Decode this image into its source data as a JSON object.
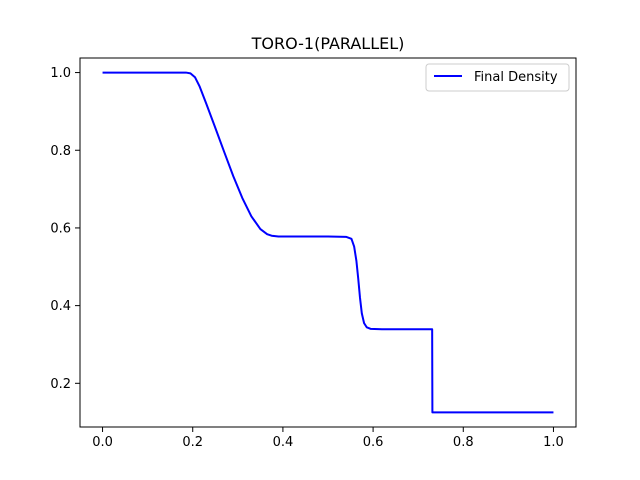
{
  "chart_data": {
    "type": "line",
    "title": "TORO-1(PARALLEL)",
    "xlabel": "",
    "ylabel": "",
    "xlim": [
      -0.05,
      1.05
    ],
    "ylim": [
      0.0875,
      1.0375
    ],
    "x_ticks": [
      0.0,
      0.2,
      0.4,
      0.6,
      0.8,
      1.0
    ],
    "x_tick_labels": [
      "0.0",
      "0.2",
      "0.4",
      "0.6",
      "0.8",
      "1.0"
    ],
    "y_ticks": [
      0.2,
      0.4,
      0.6,
      0.8,
      1.0
    ],
    "y_tick_labels": [
      "0.2",
      "0.4",
      "0.6",
      "0.8",
      "1.0"
    ],
    "grid": false,
    "legend_position": "top-right",
    "series": [
      {
        "name": "Final Density",
        "color": "#0000ff",
        "x": [
          0.0,
          0.185,
          0.195,
          0.205,
          0.215,
          0.23,
          0.25,
          0.27,
          0.29,
          0.31,
          0.33,
          0.35,
          0.365,
          0.375,
          0.39,
          0.45,
          0.5,
          0.54,
          0.552,
          0.558,
          0.563,
          0.567,
          0.571,
          0.575,
          0.58,
          0.586,
          0.595,
          0.62,
          0.68,
          0.731,
          0.7315,
          0.76,
          0.85,
          1.0
        ],
        "y": [
          1.0,
          1.0,
          0.998,
          0.988,
          0.965,
          0.92,
          0.858,
          0.795,
          0.733,
          0.677,
          0.63,
          0.597,
          0.584,
          0.58,
          0.578,
          0.578,
          0.578,
          0.577,
          0.572,
          0.552,
          0.515,
          0.47,
          0.42,
          0.38,
          0.355,
          0.344,
          0.34,
          0.339,
          0.339,
          0.339,
          0.125,
          0.125,
          0.125,
          0.125
        ]
      }
    ]
  }
}
